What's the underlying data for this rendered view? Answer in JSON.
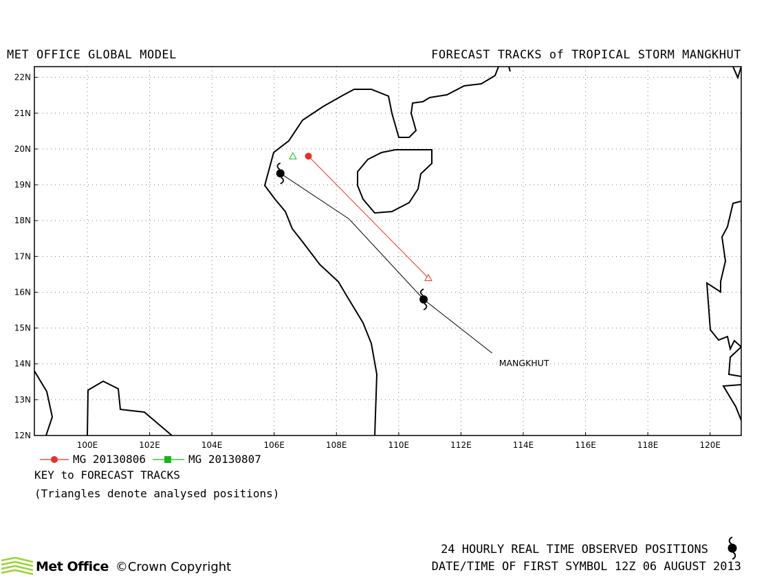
{
  "header": {
    "left": "MET OFFICE GLOBAL MODEL",
    "right": "FORECAST TRACKS of TROPICAL STORM MANGKHUT"
  },
  "map": {
    "lon_range": [
      98.3,
      121.0
    ],
    "lat_range": [
      12,
      22.3
    ],
    "grid": "dotted",
    "lon_labels": [
      "100E",
      "102E",
      "104E",
      "106E",
      "108E",
      "110E",
      "112E",
      "114E",
      "116E",
      "118E",
      "120E"
    ],
    "lat_labels": [
      "12N",
      "13N",
      "14N",
      "15N",
      "16N",
      "17N",
      "18N",
      "19N",
      "20N",
      "21N",
      "22N"
    ],
    "storm_name": "MANGKHUT",
    "observed_track": [
      [
        106.2,
        19.32
      ],
      [
        108.4,
        18.05
      ],
      [
        110.8,
        15.8
      ],
      [
        113.0,
        14.3
      ]
    ],
    "observed_positions": [
      [
        106.2,
        19.32
      ],
      [
        110.8,
        15.8
      ]
    ],
    "forecast_tracks": [
      {
        "name": "MG 20130806",
        "color": "#e8302a",
        "marker": "circle",
        "analysed": [
          110.95,
          16.4
        ],
        "forecast": [
          [
            107.1,
            19.8
          ]
        ]
      },
      {
        "name": "MG 20130807",
        "color": "#19b519",
        "marker": "square",
        "analysed": [
          106.6,
          19.8
        ],
        "forecast": []
      }
    ]
  },
  "key": {
    "series1": "MG 20130806",
    "series2": "MG 20130807",
    "title": "KEY to FORECAST TRACKS",
    "note": "(Triangles denote analysed positions)"
  },
  "footer": {
    "observed": "24 HOURLY REAL TIME OBSERVED POSITIONS",
    "datetime": "DATE/TIME OF FIRST SYMBOL 12Z 06 AUGUST 2013",
    "logo": "Met Office",
    "copyright": "©Crown Copyright"
  },
  "colors": {
    "series1": "#e8302a",
    "series2": "#19b519",
    "logo": "#9cd23a"
  }
}
